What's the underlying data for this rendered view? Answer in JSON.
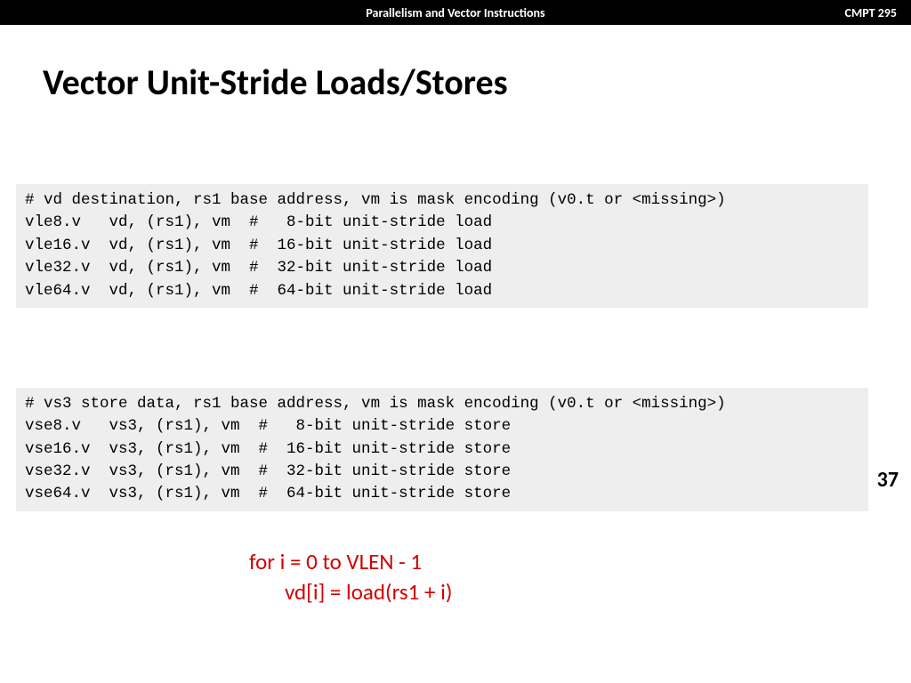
{
  "header": {
    "center": "Parallelism and Vector Instructions",
    "right": "CMPT 295"
  },
  "title": "Vector Unit-Stride Loads/Stores",
  "code_block_1": "# vd destination, rs1 base address, vm is mask encoding (v0.t or <missing>)\nvle8.v   vd, (rs1), vm  #   8-bit unit-stride load\nvle16.v  vd, (rs1), vm  #  16-bit unit-stride load\nvle32.v  vd, (rs1), vm  #  32-bit unit-stride load\nvle64.v  vd, (rs1), vm  #  64-bit unit-stride load",
  "code_block_2": "# vs3 store data, rs1 base address, vm is mask encoding (v0.t or <missing>)\nvse8.v   vs3, (rs1), vm  #   8-bit unit-stride store\nvse16.v  vs3, (rs1), vm  #  16-bit unit-stride store\nvse32.v  vs3, (rs1), vm  #  32-bit unit-stride store\nvse64.v  vs3, (rs1), vm  #  64-bit unit-stride store",
  "page_number": "37",
  "red_note": {
    "line1": "for i = 0 to VLEN - 1",
    "line2": "vd[i] = load(rs1 + i)"
  },
  "colors": {
    "header_bg": "#000000",
    "header_text": "#ffffff",
    "slide_bg": "#ffffff",
    "code_bg": "#eeeeee",
    "code_text": "#000000",
    "title_text": "#000000",
    "note_text": "#d40000"
  },
  "fonts": {
    "title_size_pt": 32,
    "code_size_pt": 13,
    "note_size_pt": 19,
    "header_size_pt": 11
  }
}
